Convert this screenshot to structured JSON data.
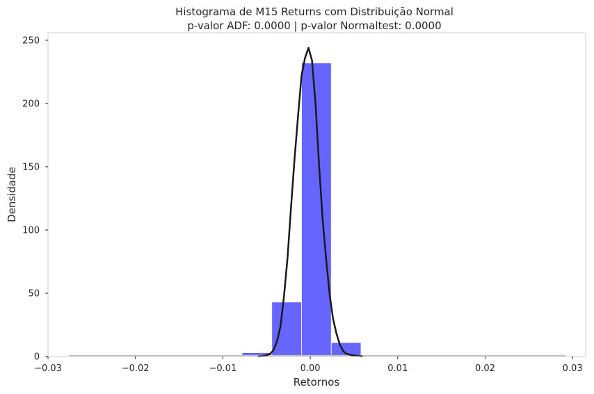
{
  "chart_data": {
    "type": "bar",
    "title": "Histograma de M15 Returns com Distribuição Normal",
    "subtitle": "p-valor ADF: 0.0000 | p-valor Normaltest: 0.0000",
    "xlabel": "Retornos",
    "ylabel": "Densidade",
    "xlim": [
      -0.03,
      0.0315
    ],
    "ylim": [
      0,
      256
    ],
    "grid": false,
    "xticks": [
      {
        "value": -0.03,
        "label": "−0.03"
      },
      {
        "value": -0.02,
        "label": "−0.02"
      },
      {
        "value": -0.01,
        "label": "−0.01"
      },
      {
        "value": 0.0,
        "label": "0.00"
      },
      {
        "value": 0.01,
        "label": "0.01"
      },
      {
        "value": 0.02,
        "label": "0.02"
      },
      {
        "value": 0.03,
        "label": "0.03"
      }
    ],
    "yticks": [
      {
        "value": 0,
        "label": "0"
      },
      {
        "value": 50,
        "label": "50"
      },
      {
        "value": 100,
        "label": "100"
      },
      {
        "value": 150,
        "label": "150"
      },
      {
        "value": 200,
        "label": "200"
      },
      {
        "value": 250,
        "label": "250"
      }
    ],
    "histogram": {
      "color": "#6666ff",
      "bin_edges": [
        -0.0276,
        -0.0242,
        -0.0208,
        -0.0174,
        -0.014,
        -0.0106,
        -0.0078,
        -0.0044,
        -0.001,
        0.0024,
        0.0058,
        0.0092,
        0.0126,
        0.016,
        0.0194,
        0.0228,
        0.0262,
        0.0292
      ],
      "density": [
        0.3,
        0.3,
        0.3,
        0.3,
        0.3,
        0.3,
        3,
        43,
        232,
        11,
        0.5,
        0.3,
        0.3,
        0.3,
        0.3,
        0.3,
        0.3
      ]
    },
    "series": [
      {
        "type": "line",
        "color": "#1a1a1a",
        "x": [
          -0.006,
          -0.0052,
          -0.0046,
          -0.0042,
          -0.0038,
          -0.0034,
          -0.003,
          -0.0026,
          -0.0022,
          -0.0018,
          -0.0014,
          -0.001,
          -0.0006,
          -0.0002,
          0.0002,
          0.0006,
          0.001,
          0.0014,
          0.0018,
          0.0022,
          0.0026,
          0.003,
          0.0034,
          0.0038,
          0.0042,
          0.0048,
          0.0054,
          0.006
        ],
        "y": [
          0,
          0.5,
          2,
          5,
          12,
          24,
          48,
          78,
          118,
          156,
          190,
          222,
          236,
          244,
          234,
          200,
          152,
          110,
          78,
          50,
          30,
          18,
          9,
          4,
          2,
          1,
          0.5,
          0
        ]
      }
    ],
    "baseline": {
      "color": "#c0c0c0",
      "x": [
        -0.0276,
        0.0292
      ],
      "y": 0.5
    }
  }
}
